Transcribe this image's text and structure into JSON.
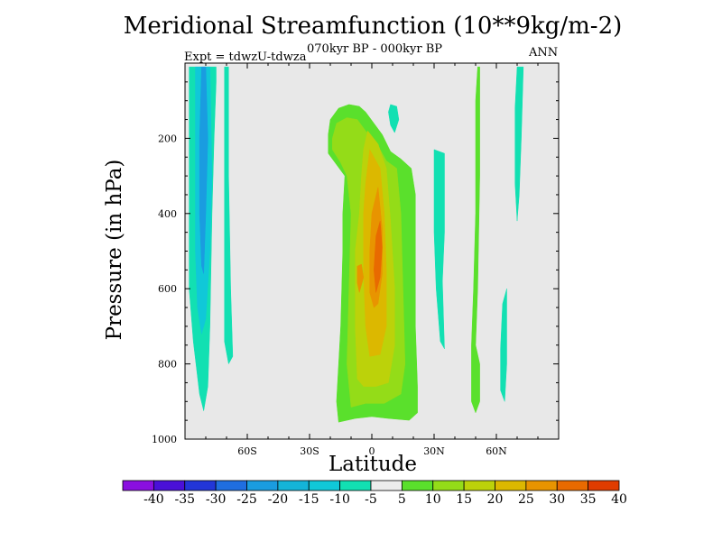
{
  "chart_data": {
    "type": "heatmap",
    "title": "Meridional Streamfunction (10**9kg/m-2)",
    "subtitle": "070kyr BP - 000kyr BP",
    "experiment": "Expt = tdwzU-tdwza",
    "season": "ANN",
    "xlabel": "Latitude",
    "ylabel": "Pressure (in hPa)",
    "xlim": [
      -90,
      90
    ],
    "ylim": [
      1000,
      0
    ],
    "y_reversed": true,
    "x_ticks": [
      {
        "value": -60,
        "label": "60S"
      },
      {
        "value": -30,
        "label": "30S"
      },
      {
        "value": 0,
        "label": "0"
      },
      {
        "value": 30,
        "label": "30N"
      },
      {
        "value": 60,
        "label": "60N"
      }
    ],
    "y_ticks": [
      {
        "value": 200,
        "label": "200"
      },
      {
        "value": 400,
        "label": "400"
      },
      {
        "value": 600,
        "label": "600"
      },
      {
        "value": 800,
        "label": "800"
      },
      {
        "value": 1000,
        "label": "1000"
      }
    ],
    "background_color": "#e8e8e8",
    "colorbar": {
      "labels": [
        "-40",
        "-35",
        "-30",
        "-25",
        "-20",
        "-15",
        "-10",
        "-5",
        "5",
        "10",
        "15",
        "20",
        "25",
        "30",
        "35",
        "40"
      ],
      "colors": [
        "#8a0fe0",
        "#4a10d8",
        "#2236d8",
        "#1f6ee0",
        "#1a9ce0",
        "#14b4d8",
        "#10c8d8",
        "#12e0b2",
        "#ececec",
        "#5ae02c",
        "#94dc18",
        "#bcd20a",
        "#dcb800",
        "#e89400",
        "#e86a00",
        "#e03c00"
      ]
    },
    "regions": [
      {
        "color": "#12e0b2",
        "value_range": "-10 to -5",
        "points": [
          [
            -88,
            10
          ],
          [
            -75,
            10
          ],
          [
            -75,
            50
          ],
          [
            -76,
            200
          ],
          [
            -77,
            400
          ],
          [
            -78,
            700
          ],
          [
            -79,
            860
          ],
          [
            -81,
            925
          ],
          [
            -83,
            880
          ],
          [
            -86,
            740
          ],
          [
            -88,
            600
          ]
        ]
      },
      {
        "color": "#10c8d8",
        "value_range": "-15 to -10",
        "points": [
          [
            -85,
            10
          ],
          [
            -78,
            10
          ],
          [
            -77,
            300
          ],
          [
            -78,
            500
          ],
          [
            -80,
            680
          ],
          [
            -82,
            720
          ],
          [
            -84,
            650
          ],
          [
            -85,
            500
          ]
        ]
      },
      {
        "color": "#1a9ce0",
        "value_range": "-20 to -15",
        "points": [
          [
            -82,
            10
          ],
          [
            -80,
            10
          ],
          [
            -79,
            200
          ],
          [
            -80,
            400
          ],
          [
            -81,
            560
          ],
          [
            -82,
            540
          ],
          [
            -83,
            400
          ],
          [
            -83,
            200
          ]
        ]
      },
      {
        "color": "#12e0b2",
        "value_range": "-10 to -5",
        "points": [
          [
            -71,
            10
          ],
          [
            -69,
            10
          ],
          [
            -69,
            300
          ],
          [
            -68,
            600
          ],
          [
            -67,
            780
          ],
          [
            -69,
            800
          ],
          [
            -71,
            740
          ],
          [
            -71,
            500
          ]
        ]
      },
      {
        "color": "#12e0b2",
        "value_range": "-10 to -5",
        "points": [
          [
            9,
            110
          ],
          [
            12,
            115
          ],
          [
            13,
            150
          ],
          [
            11,
            185
          ],
          [
            9,
            165
          ],
          [
            8,
            130
          ]
        ]
      },
      {
        "color": "#12e0b2",
        "value_range": "-10 to -5",
        "points": [
          [
            30,
            230
          ],
          [
            35,
            240
          ],
          [
            35,
            450
          ],
          [
            34,
            580
          ],
          [
            35,
            760
          ],
          [
            33,
            740
          ],
          [
            31,
            600
          ],
          [
            30,
            450
          ],
          [
            30,
            300
          ]
        ]
      },
      {
        "color": "#12e0b2",
        "value_range": "-10 to -5",
        "points": [
          [
            70,
            10
          ],
          [
            73,
            10
          ],
          [
            72,
            200
          ],
          [
            71,
            350
          ],
          [
            70,
            420
          ],
          [
            69,
            320
          ],
          [
            69,
            120
          ]
        ]
      },
      {
        "color": "#12e0b2",
        "value_range": "-10 to -5",
        "points": [
          [
            63,
            640
          ],
          [
            65,
            600
          ],
          [
            65,
            800
          ],
          [
            64,
            900
          ],
          [
            62,
            870
          ],
          [
            62,
            760
          ]
        ]
      },
      {
        "color": "#5ae02c",
        "value_range": "5 to 10",
        "points": [
          [
            -21,
            190
          ],
          [
            -20,
            150
          ],
          [
            -16,
            120
          ],
          [
            -11,
            110
          ],
          [
            -6,
            115
          ],
          [
            -3,
            130
          ],
          [
            1,
            160
          ],
          [
            5,
            190
          ],
          [
            9,
            235
          ],
          [
            14,
            255
          ],
          [
            19,
            280
          ],
          [
            21,
            350
          ],
          [
            21,
            500
          ],
          [
            21,
            700
          ],
          [
            22,
            860
          ],
          [
            22,
            930
          ],
          [
            18,
            950
          ],
          [
            8,
            945
          ],
          [
            0,
            940
          ],
          [
            -8,
            945
          ],
          [
            -16,
            955
          ],
          [
            -17,
            900
          ],
          [
            -15,
            700
          ],
          [
            -14,
            500
          ],
          [
            -14,
            400
          ],
          [
            -13,
            300
          ],
          [
            -17,
            270
          ],
          [
            -21,
            240
          ]
        ]
      },
      {
        "color": "#94dc18",
        "value_range": "10 to 15",
        "points": [
          [
            -19,
            200
          ],
          [
            -17,
            160
          ],
          [
            -12,
            145
          ],
          [
            -7,
            150
          ],
          [
            -3,
            180
          ],
          [
            2,
            210
          ],
          [
            7,
            260
          ],
          [
            12,
            280
          ],
          [
            14,
            400
          ],
          [
            15,
            600
          ],
          [
            16,
            800
          ],
          [
            14,
            880
          ],
          [
            6,
            905
          ],
          [
            -3,
            905
          ],
          [
            -10,
            915
          ],
          [
            -12,
            800
          ],
          [
            -11,
            600
          ],
          [
            -10,
            400
          ],
          [
            -12,
            300
          ],
          [
            -15,
            265
          ],
          [
            -19,
            230
          ]
        ]
      },
      {
        "color": "#bcd20a",
        "value_range": "15 to 20",
        "points": [
          [
            -2,
            180
          ],
          [
            3,
            215
          ],
          [
            7,
            280
          ],
          [
            9,
            420
          ],
          [
            11,
            600
          ],
          [
            11,
            750
          ],
          [
            8,
            850
          ],
          [
            2,
            860
          ],
          [
            -4,
            860
          ],
          [
            -7,
            840
          ],
          [
            -8,
            700
          ],
          [
            -8,
            500
          ],
          [
            -6,
            400
          ],
          [
            -5,
            300
          ],
          [
            -4,
            230
          ]
        ]
      },
      {
        "color": "#dcb800",
        "value_range": "20 to 25",
        "points": [
          [
            -1,
            230
          ],
          [
            4,
            280
          ],
          [
            6,
            400
          ],
          [
            7,
            550
          ],
          [
            7,
            700
          ],
          [
            4,
            775
          ],
          [
            -1,
            780
          ],
          [
            -3,
            700
          ],
          [
            -4,
            550
          ],
          [
            -4,
            400
          ],
          [
            -3,
            320
          ]
        ]
      },
      {
        "color": "#e89400",
        "value_range": "25 to 30",
        "points": [
          [
            3,
            330
          ],
          [
            5,
            440
          ],
          [
            5,
            560
          ],
          [
            3,
            640
          ],
          [
            1,
            650
          ],
          [
            -1,
            610
          ],
          [
            -1,
            500
          ],
          [
            0,
            400
          ]
        ]
      },
      {
        "color": "#e89400",
        "value_range": "25 to 30",
        "points": [
          [
            -7,
            540
          ],
          [
            -5,
            535
          ],
          [
            -4,
            570
          ],
          [
            -6,
            610
          ],
          [
            -7,
            585
          ]
        ]
      },
      {
        "color": "#e86a00",
        "value_range": "30 to 35",
        "points": [
          [
            4,
            420
          ],
          [
            5,
            490
          ],
          [
            4,
            570
          ],
          [
            2,
            610
          ],
          [
            1,
            550
          ],
          [
            2,
            460
          ]
        ]
      },
      {
        "color": "#5ae02c",
        "value_range": "5 to 10",
        "points": [
          [
            51,
            10
          ],
          [
            52,
            10
          ],
          [
            52,
            300
          ],
          [
            51,
            600
          ],
          [
            50,
            750
          ],
          [
            52,
            800
          ],
          [
            52,
            900
          ],
          [
            50,
            930
          ],
          [
            48,
            900
          ],
          [
            48,
            750
          ],
          [
            49,
            600
          ],
          [
            50,
            400
          ],
          [
            50,
            100
          ]
        ]
      }
    ]
  }
}
